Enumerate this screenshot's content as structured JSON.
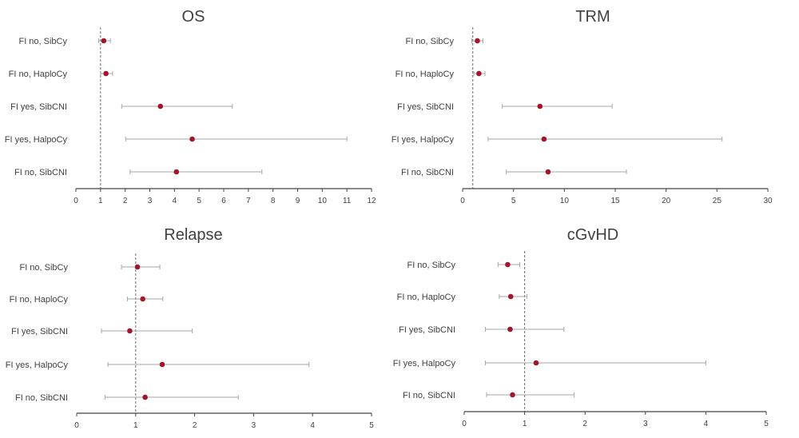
{
  "chart_data": [
    {
      "type": "forest",
      "title": "OS",
      "xlim": [
        0,
        12
      ],
      "xticks": [
        0,
        1,
        2,
        3,
        4,
        5,
        6,
        7,
        8,
        9,
        10,
        11,
        12
      ],
      "reference_line": 1,
      "categories": [
        "FI no, SibCy",
        "FI no, HaploCy",
        "FI yes, SibCNI",
        "FI yes, HalpoCy",
        "FI no, SibCNI"
      ],
      "estimates": [
        1.13,
        1.22,
        3.43,
        4.72,
        4.08
      ],
      "lower": [
        0.92,
        1.0,
        1.86,
        2.02,
        2.2
      ],
      "upper": [
        1.4,
        1.49,
        6.35,
        11.0,
        7.55
      ]
    },
    {
      "type": "forest",
      "title": "TRM",
      "xlim": [
        0,
        30
      ],
      "xticks": [
        0,
        5,
        10,
        15,
        20,
        25,
        30
      ],
      "reference_line": 1,
      "categories": [
        "FI no, SibCy",
        "FI no, HaploCy",
        "FI yes, SibCNI",
        "FI yes, HalpoCy",
        "FI no, SibCNI"
      ],
      "estimates": [
        1.45,
        1.6,
        7.6,
        8.0,
        8.4
      ],
      "lower": [
        0.9,
        1.1,
        3.9,
        2.5,
        4.3
      ],
      "upper": [
        2.0,
        2.2,
        14.7,
        25.5,
        16.1
      ]
    },
    {
      "type": "forest",
      "title": "Relapse",
      "xlim": [
        0,
        5
      ],
      "xticks": [
        0,
        1,
        2,
        3,
        4,
        5
      ],
      "reference_line": 1,
      "categories": [
        "FI no, SibCy",
        "FI no, HaploCy",
        "FI yes, SibCNI",
        "FI yes, HalpoCy",
        "FI no, SibCNI"
      ],
      "estimates": [
        1.03,
        1.12,
        0.9,
        1.45,
        1.16
      ],
      "lower": [
        0.76,
        0.86,
        0.42,
        0.53,
        0.48
      ],
      "upper": [
        1.41,
        1.46,
        1.96,
        3.94,
        2.74
      ]
    },
    {
      "type": "forest",
      "title": "cGvHD",
      "xlim": [
        0,
        5
      ],
      "xticks": [
        0,
        1,
        2,
        3,
        4,
        5
      ],
      "reference_line": 1,
      "categories": [
        "FI no, SibCy",
        "FI no, HaploCy",
        "FI yes, SibCNI",
        "FI yes, HalpoCy",
        "FI no, SibCNI"
      ],
      "estimates": [
        0.72,
        0.77,
        0.76,
        1.19,
        0.8
      ],
      "lower": [
        0.56,
        0.58,
        0.35,
        0.35,
        0.37
      ],
      "upper": [
        0.92,
        1.04,
        1.65,
        4.0,
        1.82
      ]
    }
  ]
}
